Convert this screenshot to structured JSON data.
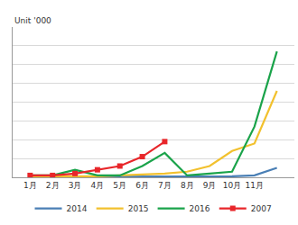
{
  "chart_data": {
    "type": "line",
    "y_label": "Unit '000",
    "categories": [
      "1月",
      "2月",
      "3月",
      "4月",
      "5月",
      "6月",
      "7月",
      "8月",
      "9月",
      "10月",
      "11月",
      null
    ],
    "series": [
      {
        "name": "2014",
        "color": "#4a7fb5",
        "values": [
          0.02,
          0.02,
          0.02,
          0.02,
          0.02,
          0.02,
          0.03,
          0.03,
          0.03,
          0.05,
          0.1,
          0.5
        ]
      },
      {
        "name": "2015",
        "color": "#f2c12e",
        "values": [
          0.05,
          0.05,
          0.05,
          0.05,
          0.1,
          0.15,
          0.2,
          0.3,
          0.6,
          1.4,
          1.8,
          4.6
        ]
      },
      {
        "name": "2016",
        "color": "#1aa34a",
        "values": [
          0.1,
          0.1,
          0.4,
          0.1,
          0.1,
          0.6,
          1.3,
          0.1,
          0.2,
          0.3,
          2.7,
          6.7
        ]
      },
      {
        "name": "2007",
        "color": "#e8262a",
        "marker": "square",
        "values": [
          0.1,
          0.1,
          0.2,
          0.4,
          0.6,
          1.1,
          1.9,
          null,
          null,
          null,
          null,
          null
        ]
      }
    ],
    "ylim": [
      0,
      8
    ],
    "yticks": [
      0,
      1,
      2,
      3,
      4,
      5,
      6,
      7,
      8
    ],
    "grid": true,
    "tick_labels": "x",
    "legend": "bottom"
  }
}
